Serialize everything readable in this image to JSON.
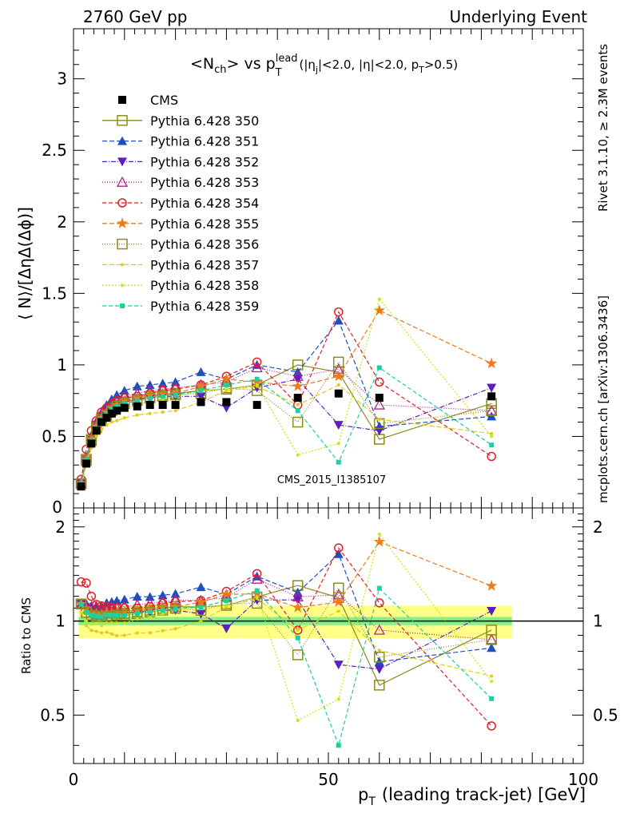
{
  "header": {
    "left_label": "2760 GeV pp",
    "right_label": "Underlying Event"
  },
  "side_labels": {
    "rivet": "Rivet 3.1.10, ≥ 2.3M events",
    "mcplots": "mcplots.cern.ch [arXiv:1306.3436]"
  },
  "watermark": "CMS_2015_I1385107",
  "colors": {
    "CMS": "#000000",
    "Pythia 6.428 350": "#8c8c1e",
    "Pythia 6.428 351": "#1f4fbf",
    "Pythia 6.428 352": "#5a1fbf",
    "Pythia 6.428 353": "#b81f8c",
    "Pythia 6.428 354": "#e01f2a",
    "Pythia 6.428 355": "#f07a1a",
    "Pythia 6.428 356": "#8c8c1e",
    "Pythia 6.428 357": "#e6c81a",
    "Pythia 6.428 358": "#c8e61a",
    "Pythia 6.428 359": "#1ad1a0"
  },
  "chart_data": [
    {
      "type": "scatter",
      "panel": "main",
      "title_parts": {
        "main": "<N",
        "main_sub": "ch",
        "mid": "> vs p",
        "p_sup": "lead",
        "p_sub": "T",
        "cuts_a": "(|η",
        "cuts_a_sub": "j",
        "cuts_b": "|<2.0, |η|<2.0, p",
        "cuts_b_sub": "T",
        "cuts_c": ">0.5)"
      },
      "ylabel": "⟨ N⟩/[ΔηΔ(Δϕ)]",
      "ylim": [
        0,
        3.35
      ],
      "xlim": [
        0,
        100
      ],
      "yticks": [
        "0.5",
        "1",
        "1.5",
        "2",
        "2.5",
        "3"
      ],
      "ytick_values": [
        0.5,
        1,
        1.5,
        2,
        2.5,
        3
      ],
      "x": [
        1.5,
        2.5,
        3.5,
        4.5,
        5.5,
        6.5,
        7.5,
        8.5,
        10,
        12.5,
        15,
        17.5,
        20,
        25,
        30,
        36,
        44,
        52,
        60,
        82
      ],
      "series": [
        {
          "name": "CMS",
          "marker": "square-filled",
          "dash": "none",
          "values": [
            0.15,
            0.31,
            0.45,
            0.54,
            0.6,
            0.63,
            0.66,
            0.68,
            0.7,
            0.71,
            0.72,
            0.72,
            0.72,
            0.74,
            0.74,
            0.72,
            0.77,
            0.8,
            0.77,
            0.78
          ]
        },
        {
          "name": "Pythia 6.428 350",
          "marker": "square-open",
          "dash": "solid",
          "values": [
            0.17,
            0.34,
            0.48,
            0.57,
            0.63,
            0.67,
            0.7,
            0.72,
            0.74,
            0.76,
            0.78,
            0.79,
            0.8,
            0.82,
            0.83,
            0.86,
            1.0,
            0.95,
            0.48,
            0.73
          ]
        },
        {
          "name": "Pythia 6.428 351",
          "marker": "triangle-up-filled",
          "dash": "6,3",
          "values": [
            0.17,
            0.35,
            0.5,
            0.6,
            0.67,
            0.72,
            0.76,
            0.79,
            0.82,
            0.85,
            0.86,
            0.87,
            0.88,
            0.95,
            0.9,
            1.0,
            0.95,
            1.31,
            0.57,
            0.64
          ]
        },
        {
          "name": "Pythia 6.428 352",
          "marker": "triangle-down-filled",
          "dash": "6,2,1,2",
          "values": [
            0.17,
            0.34,
            0.48,
            0.57,
            0.63,
            0.67,
            0.7,
            0.72,
            0.74,
            0.76,
            0.77,
            0.78,
            0.78,
            0.78,
            0.7,
            0.84,
            0.9,
            0.58,
            0.54,
            0.84
          ]
        },
        {
          "name": "Pythia 6.428 353",
          "marker": "triangle-up-open",
          "dash": "1,2",
          "values": [
            0.17,
            0.35,
            0.5,
            0.6,
            0.66,
            0.7,
            0.73,
            0.75,
            0.78,
            0.8,
            0.82,
            0.83,
            0.84,
            0.86,
            0.88,
            0.98,
            0.92,
            0.97,
            0.72,
            0.68
          ]
        },
        {
          "name": "Pythia 6.428 354",
          "marker": "circle-open",
          "dash": "5,3",
          "values": [
            0.2,
            0.41,
            0.54,
            0.61,
            0.67,
            0.7,
            0.73,
            0.75,
            0.77,
            0.78,
            0.8,
            0.82,
            0.83,
            0.86,
            0.92,
            1.02,
            0.72,
            1.37,
            0.88,
            0.36
          ]
        },
        {
          "name": "Pythia 6.428 355",
          "marker": "star-filled",
          "dash": "6,3",
          "values": [
            0.17,
            0.34,
            0.48,
            0.57,
            0.63,
            0.67,
            0.7,
            0.72,
            0.75,
            0.77,
            0.79,
            0.8,
            0.8,
            0.85,
            0.9,
            0.88,
            0.85,
            0.92,
            1.38,
            1.01
          ]
        },
        {
          "name": "Pythia 6.428 356",
          "marker": "square-open",
          "dash": "1,2",
          "values": [
            0.17,
            0.33,
            0.47,
            0.56,
            0.62,
            0.65,
            0.68,
            0.71,
            0.73,
            0.75,
            0.77,
            0.78,
            0.79,
            0.8,
            0.84,
            0.82,
            0.6,
            1.02,
            0.59,
            0.68
          ]
        },
        {
          "name": "Pythia 6.428 357",
          "marker": "dot",
          "dash": "6,3",
          "values": [
            0.16,
            0.3,
            0.42,
            0.5,
            0.55,
            0.58,
            0.6,
            0.61,
            0.63,
            0.65,
            0.66,
            0.67,
            0.68,
            0.74,
            0.82,
            0.85,
            0.72,
            0.86,
            0.62,
            0.52
          ]
        },
        {
          "name": "Pythia 6.428 358",
          "marker": "dot",
          "dash": "2,2",
          "values": [
            0.16,
            0.31,
            0.44,
            0.53,
            0.58,
            0.62,
            0.65,
            0.67,
            0.69,
            0.72,
            0.74,
            0.76,
            0.78,
            0.82,
            0.83,
            0.86,
            0.37,
            0.45,
            1.46,
            0.5
          ]
        },
        {
          "name": "Pythia 6.428 359",
          "marker": "square-small-filled",
          "dash": "5,3",
          "values": [
            0.17,
            0.33,
            0.47,
            0.56,
            0.62,
            0.66,
            0.69,
            0.71,
            0.73,
            0.75,
            0.77,
            0.78,
            0.79,
            0.82,
            0.86,
            0.9,
            0.68,
            0.32,
            0.98,
            0.44
          ]
        }
      ]
    },
    {
      "type": "scatter",
      "panel": "ratio",
      "ylabel": "Ratio to CMS",
      "xlabel_main": "p",
      "xlabel_sub": "T",
      "xlabel_rest": "(leading track-jet) [GeV]",
      "xlim": [
        0,
        100
      ],
      "ylim": [
        0.35,
        2.3
      ],
      "xticks": [
        "0",
        "50",
        "100"
      ],
      "xtick_values": [
        0,
        50,
        100
      ],
      "yticks": [
        "0.5",
        "1",
        "2"
      ],
      "ytick_values": [
        0.5,
        1,
        2
      ],
      "reference_line": 1.0,
      "bands": {
        "stat": 0.03,
        "syst": 0.12
      }
    }
  ]
}
